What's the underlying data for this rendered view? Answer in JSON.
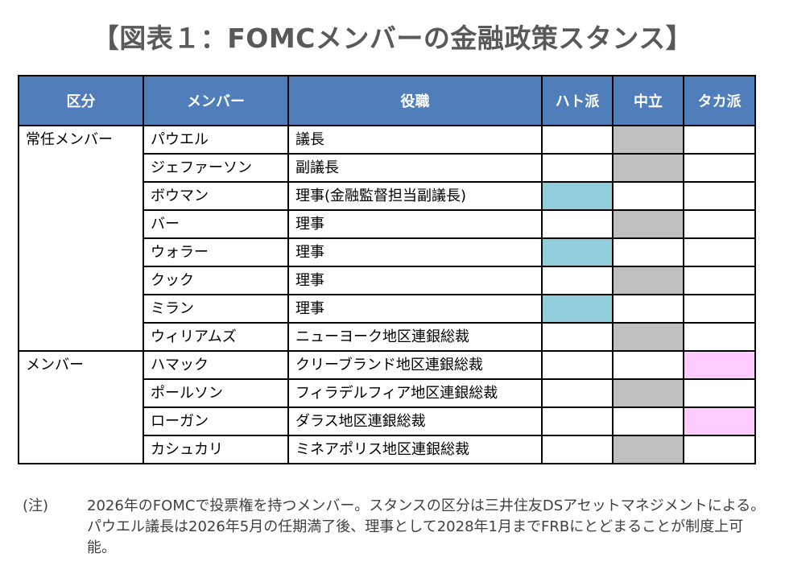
{
  "title": "【図表１：FOMCメンバーの金融政策スタンス】",
  "headers": [
    "区分",
    "メンバー",
    "役職",
    "ハト派",
    "中立",
    "タカ派"
  ],
  "groups": [
    {
      "label": "常任メンバー",
      "rows": [
        {
          "name": "パウエル",
          "position": "議長",
          "stance": "neutral"
        },
        {
          "name": "ジェファーソン",
          "position": "副議長",
          "stance": "neutral"
        },
        {
          "name": "ボウマン",
          "position": "理事(金融監督担当副議長)",
          "stance": "dove"
        },
        {
          "name": "バー",
          "position": "理事",
          "stance": "neutral"
        },
        {
          "name": "ウォラー",
          "position": "理事",
          "stance": "dove"
        },
        {
          "name": "クック",
          "position": "理事",
          "stance": "neutral"
        },
        {
          "name": "ミラン",
          "position": "理事",
          "stance": "dove"
        },
        {
          "name": "ウィリアムズ",
          "position": "ニューヨーク地区連銀総裁",
          "stance": "neutral"
        }
      ]
    },
    {
      "label": "メンバー",
      "rows": [
        {
          "name": "ハマック",
          "position": "クリーブランド地区連銀総裁",
          "stance": "hawk"
        },
        {
          "name": "ポールソン",
          "position": "フィラデルフィア地区連銀総裁",
          "stance": "neutral"
        },
        {
          "name": "ローガン",
          "position": "ダラス地区連銀総裁",
          "stance": "hawk"
        },
        {
          "name": "カシュカリ",
          "position": "ミネアポリス地区連銀総裁",
          "stance": "neutral"
        }
      ]
    }
  ],
  "stance_colors": {
    "dove": "#92CDDC",
    "neutral": "#BFBFBF",
    "hawk": "#FFCCFF"
  },
  "note": {
    "label": "(注)",
    "text": "2026年のFOMCで投票権を持つメンバー。スタンスの区分は三井住友DSアセットマネジメントによる。パウエル議長は2026年5月の任期満了後、理事として2028年1月までFRBにとどまることが制度上可能。"
  }
}
